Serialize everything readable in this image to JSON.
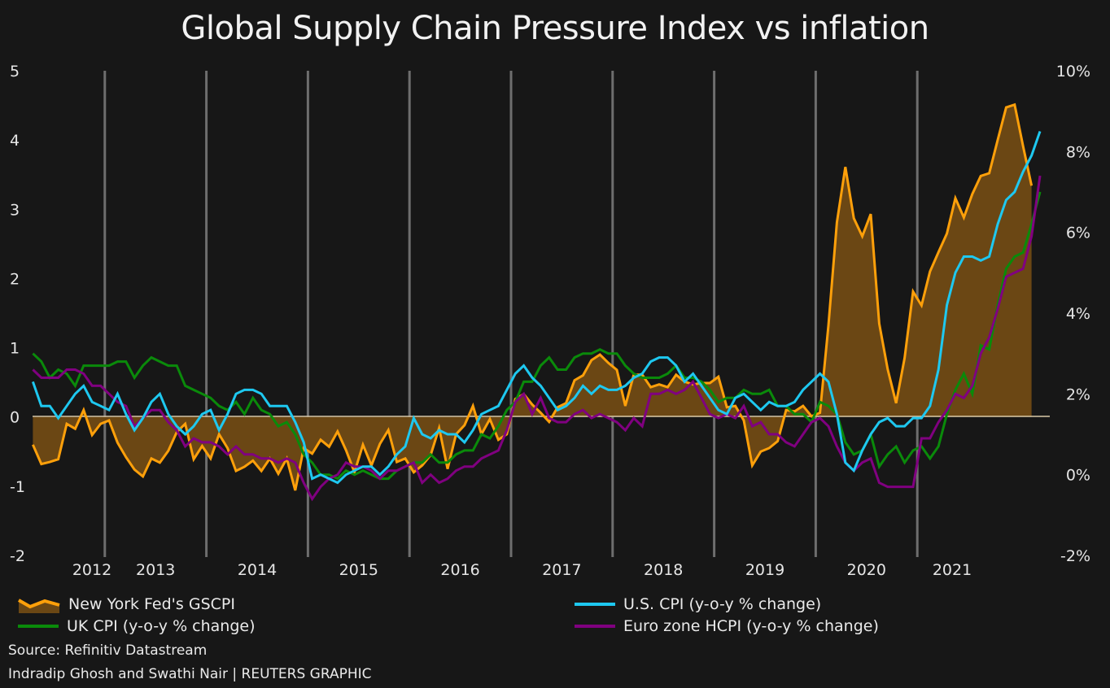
{
  "chart_data": {
    "type": "line",
    "title": "Global Supply Chain Pressure Index vs inflation",
    "x_start": "2012-04",
    "x_frequency": "monthly",
    "x_tick_labels": [
      "2012",
      "2013",
      "2014",
      "2015",
      "2016",
      "2017",
      "2018",
      "2019",
      "2020",
      "2021"
    ],
    "y_left": {
      "range": [
        -2,
        5
      ],
      "tick_labels": [
        "5",
        "4",
        "3",
        "2",
        "1",
        "0",
        "-1",
        "-2"
      ],
      "ticks": [
        5,
        4,
        3,
        2,
        1,
        0,
        -1,
        -2
      ]
    },
    "y_right": {
      "range": [
        -2,
        10
      ],
      "tick_labels": [
        "10%",
        "8%",
        "6%",
        "4%",
        "2%",
        "0%",
        "-2%"
      ],
      "ticks": [
        10,
        8,
        6,
        4,
        2,
        0,
        -2
      ]
    },
    "grid": "vertical year separators",
    "legend": "bottom",
    "series": [
      {
        "name": "New York Fed's GSCPI",
        "axis": "left",
        "style": "area",
        "color": "#FFA00A",
        "fill": "#6B4714",
        "values": [
          -0.4,
          -0.68,
          -0.65,
          -0.61,
          -0.1,
          -0.17,
          0.1,
          -0.26,
          -0.1,
          -0.05,
          -0.37,
          -0.58,
          -0.76,
          -0.86,
          -0.6,
          -0.66,
          -0.49,
          -0.22,
          -0.1,
          -0.61,
          -0.42,
          -0.6,
          -0.25,
          -0.45,
          -0.78,
          -0.72,
          -0.63,
          -0.78,
          -0.6,
          -0.82,
          -0.6,
          -1.06,
          -0.45,
          -0.53,
          -0.33,
          -0.43,
          -0.21,
          -0.48,
          -0.8,
          -0.4,
          -0.7,
          -0.39,
          -0.19,
          -0.65,
          -0.6,
          -0.8,
          -0.7,
          -0.55,
          -0.16,
          -0.75,
          -0.25,
          -0.12,
          0.16,
          -0.25,
          -0.03,
          -0.33,
          -0.25,
          0.26,
          0.33,
          0.18,
          0.06,
          -0.07,
          0.14,
          0.2,
          0.53,
          0.6,
          0.82,
          0.9,
          0.78,
          0.68,
          0.16,
          0.61,
          0.61,
          0.43,
          0.47,
          0.43,
          0.61,
          0.51,
          0.47,
          0.49,
          0.49,
          0.58,
          0.14,
          0.16,
          -0.05,
          -0.7,
          -0.5,
          -0.45,
          -0.35,
          0.1,
          0.08,
          0.16,
          0.01,
          0.06,
          1.32,
          2.81,
          3.61,
          2.87,
          2.61,
          2.93,
          1.35,
          0.69,
          0.2,
          0.85,
          1.81,
          1.61,
          2.1,
          2.38,
          2.65,
          3.16,
          2.88,
          3.22,
          3.48,
          3.52,
          4.0,
          4.47,
          4.51,
          3.91,
          3.34
        ]
      },
      {
        "name": "U.S. CPI (y-o-y % change)",
        "axis": "right",
        "color": "#1EC8F0",
        "values": [
          2.3,
          1.7,
          1.7,
          1.4,
          1.7,
          2.0,
          2.2,
          1.8,
          1.7,
          1.6,
          2.0,
          1.5,
          1.1,
          1.4,
          1.8,
          2.0,
          1.5,
          1.2,
          1.0,
          1.2,
          1.5,
          1.6,
          1.1,
          1.5,
          2.0,
          2.1,
          2.1,
          2.0,
          1.7,
          1.7,
          1.7,
          1.3,
          0.8,
          -0.1,
          0.0,
          -0.1,
          -0.2,
          0.0,
          0.1,
          0.2,
          0.2,
          0.0,
          0.2,
          0.5,
          0.7,
          1.4,
          1.0,
          0.9,
          1.1,
          1.0,
          1.0,
          0.8,
          1.1,
          1.5,
          1.6,
          1.7,
          2.1,
          2.5,
          2.7,
          2.4,
          2.2,
          1.9,
          1.6,
          1.7,
          1.9,
          2.2,
          2.0,
          2.2,
          2.1,
          2.1,
          2.2,
          2.4,
          2.5,
          2.8,
          2.9,
          2.9,
          2.7,
          2.3,
          2.5,
          2.2,
          1.9,
          1.6,
          1.5,
          1.9,
          2.0,
          1.8,
          1.6,
          1.8,
          1.7,
          1.7,
          1.8,
          2.1,
          2.3,
          2.5,
          2.3,
          1.5,
          0.3,
          0.1,
          0.6,
          1.0,
          1.3,
          1.4,
          1.2,
          1.2,
          1.4,
          1.4,
          1.7,
          2.6,
          4.2,
          5.0,
          5.4,
          5.4,
          5.3,
          5.4,
          6.2,
          6.8,
          7.0,
          7.5,
          7.9,
          8.5
        ]
      },
      {
        "name": "UK CPI (y-o-y % change)",
        "axis": "right",
        "color": "#0A8A0A",
        "values": [
          3.0,
          2.8,
          2.4,
          2.6,
          2.5,
          2.2,
          2.7,
          2.7,
          2.7,
          2.7,
          2.8,
          2.8,
          2.4,
          2.7,
          2.9,
          2.8,
          2.7,
          2.7,
          2.2,
          2.1,
          2.0,
          1.9,
          1.7,
          1.6,
          1.8,
          1.5,
          1.9,
          1.6,
          1.5,
          1.2,
          1.3,
          1.0,
          0.5,
          0.3,
          0.0,
          0.0,
          -0.1,
          0.1,
          0.0,
          0.1,
          0.0,
          -0.1,
          -0.1,
          0.1,
          0.2,
          0.3,
          0.3,
          0.5,
          0.3,
          0.3,
          0.5,
          0.6,
          0.6,
          1.0,
          0.9,
          1.2,
          1.6,
          1.8,
          2.3,
          2.3,
          2.7,
          2.9,
          2.6,
          2.6,
          2.9,
          3.0,
          3.0,
          3.1,
          3.0,
          3.0,
          2.7,
          2.5,
          2.4,
          2.4,
          2.4,
          2.5,
          2.7,
          2.4,
          2.4,
          2.3,
          2.1,
          1.8,
          1.9,
          1.9,
          2.1,
          2.0,
          2.0,
          2.1,
          1.7,
          1.7,
          1.5,
          1.5,
          1.3,
          1.8,
          1.7,
          1.5,
          0.8,
          0.5,
          0.6,
          1.0,
          0.2,
          0.5,
          0.7,
          0.3,
          0.6,
          0.7,
          0.4,
          0.7,
          1.5,
          2.1,
          2.5,
          2.0,
          3.2,
          3.1,
          4.2,
          5.1,
          5.4,
          5.5,
          6.2,
          7.0
        ]
      },
      {
        "name": "Euro zone HCPI (y-o-y % change)",
        "axis": "right",
        "color": "#800080",
        "values": [
          2.6,
          2.4,
          2.4,
          2.4,
          2.6,
          2.6,
          2.5,
          2.2,
          2.2,
          2.0,
          1.8,
          1.7,
          1.2,
          1.4,
          1.6,
          1.6,
          1.3,
          1.1,
          0.7,
          0.9,
          0.8,
          0.8,
          0.7,
          0.5,
          0.7,
          0.5,
          0.5,
          0.4,
          0.4,
          0.3,
          0.4,
          0.3,
          -0.2,
          -0.6,
          -0.3,
          -0.1,
          0.0,
          0.3,
          0.2,
          0.2,
          0.1,
          -0.1,
          0.1,
          0.1,
          0.2,
          0.3,
          -0.2,
          0.0,
          -0.2,
          -0.1,
          0.1,
          0.2,
          0.2,
          0.4,
          0.5,
          0.6,
          1.1,
          1.8,
          2.0,
          1.5,
          1.9,
          1.4,
          1.3,
          1.3,
          1.5,
          1.6,
          1.4,
          1.5,
          1.4,
          1.3,
          1.1,
          1.4,
          1.2,
          2.0,
          2.0,
          2.1,
          2.0,
          2.1,
          2.3,
          1.9,
          1.5,
          1.4,
          1.5,
          1.4,
          1.7,
          1.2,
          1.3,
          1.0,
          1.0,
          0.8,
          0.7,
          1.0,
          1.3,
          1.4,
          1.2,
          0.7,
          0.3,
          0.1,
          0.3,
          0.4,
          -0.2,
          -0.3,
          -0.3,
          -0.3,
          -0.3,
          0.9,
          0.9,
          1.3,
          1.6,
          2.0,
          1.9,
          2.2,
          3.0,
          3.4,
          4.1,
          4.9,
          5.0,
          5.1,
          5.9,
          7.4
        ]
      }
    ]
  },
  "legend": {
    "gscpi": "New York Fed's GSCPI",
    "uk": "UK CPI (y-o-y % change)",
    "us": "U.S. CPI (y-o-y % change)",
    "euro": "Euro zone HCPI (y-o-y % change)"
  },
  "footer": {
    "source": "Source: Refinitiv Datastream",
    "credit": "Indradip Ghosh and Swathi Nair | REUTERS GRAPHIC"
  }
}
